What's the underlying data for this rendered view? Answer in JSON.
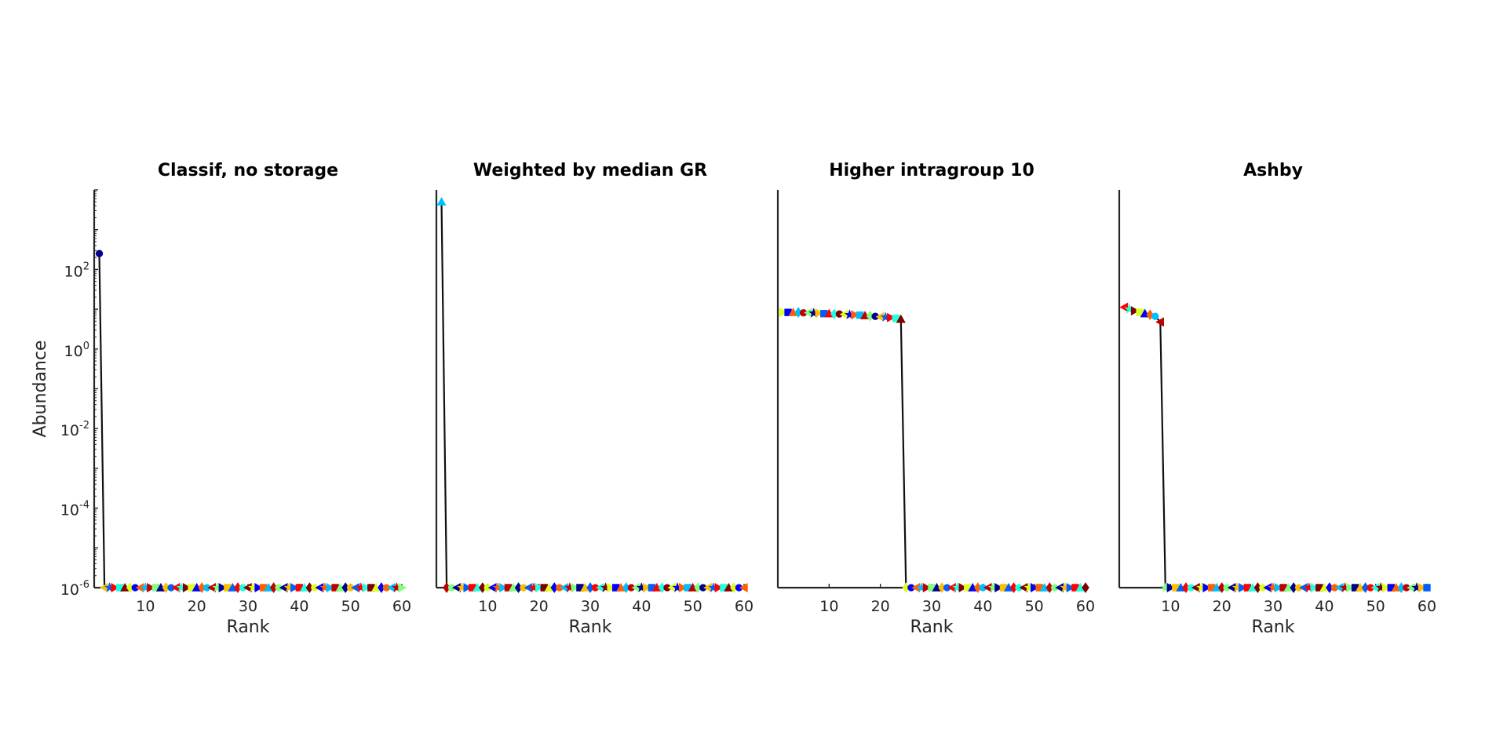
{
  "chart_data": [
    {
      "type": "line",
      "title": "Classif, no storage",
      "xlabel": "Rank",
      "ylabel": "Abundance",
      "ylog": true,
      "xlim": [
        0,
        60
      ],
      "ylim_exp": [
        -6,
        4
      ],
      "xticks": [
        10,
        20,
        30,
        40,
        50,
        60
      ],
      "yticks": [
        {
          "base": "10",
          "exp": "2"
        },
        {
          "base": "10",
          "exp": "0"
        },
        {
          "base": "10",
          "exp": "-2"
        },
        {
          "base": "10",
          "exp": "-4"
        },
        {
          "base": "10",
          "exp": "-6"
        }
      ],
      "series": [
        {
          "y_exp": [
            2.4,
            -6.0,
            -6.0,
            -6.0,
            -6.0,
            -6.0,
            -6.0,
            -6.0,
            -6.0,
            -6.0,
            -6.0,
            -6.0,
            -6.0,
            -6.0,
            -6.0,
            -6.0,
            -6.0,
            -6.0,
            -6.0,
            -6.0,
            -6.0,
            -6.0,
            -6.0,
            -6.0,
            -6.0,
            -6.0,
            -6.0,
            -6.0,
            -6.0,
            -6.0,
            -6.0,
            -6.0,
            -6.0,
            -6.0,
            -6.0,
            -6.0,
            -6.0,
            -6.0,
            -6.0,
            -6.0,
            -6.0,
            -6.0,
            -6.0,
            -6.0,
            -6.0,
            -6.0,
            -6.0,
            -6.0,
            -6.0,
            -6.0,
            -6.0,
            -6.0,
            -6.0,
            -6.0,
            -6.0,
            -6.0,
            -6.0,
            -6.0,
            -6.0,
            -6.0
          ]
        }
      ]
    },
    {
      "type": "line",
      "title": "Weighted by median GR",
      "xlabel": "Rank",
      "ylog": true,
      "xlim": [
        0,
        60
      ],
      "ylim_exp": [
        -6,
        4
      ],
      "xticks": [
        10,
        20,
        30,
        40,
        50,
        60
      ],
      "series": [
        {
          "y_exp": [
            3.7,
            -6.0,
            -6.0,
            -6.0,
            -6.0,
            -6.0,
            -6.0,
            -6.0,
            -6.0,
            -6.0,
            -6.0,
            -6.0,
            -6.0,
            -6.0,
            -6.0,
            -6.0,
            -6.0,
            -6.0,
            -6.0,
            -6.0,
            -6.0,
            -6.0,
            -6.0,
            -6.0,
            -6.0,
            -6.0,
            -6.0,
            -6.0,
            -6.0,
            -6.0,
            -6.0,
            -6.0,
            -6.0,
            -6.0,
            -6.0,
            -6.0,
            -6.0,
            -6.0,
            -6.0,
            -6.0,
            -6.0,
            -6.0,
            -6.0,
            -6.0,
            -6.0,
            -6.0,
            -6.0,
            -6.0,
            -6.0,
            -6.0,
            -6.0,
            -6.0,
            -6.0,
            -6.0,
            -6.0,
            -6.0,
            -6.0,
            -6.0,
            -6.0,
            -6.0
          ]
        }
      ]
    },
    {
      "type": "line",
      "title": "Higher intragroup 10",
      "xlabel": "Rank",
      "ylog": true,
      "xlim": [
        0,
        60
      ],
      "ylim_exp": [
        -6,
        4
      ],
      "xticks": [
        10,
        20,
        30,
        40,
        50,
        60
      ],
      "series": [
        {
          "y_exp": [
            0.92,
            0.92,
            0.92,
            0.92,
            0.91,
            0.91,
            0.9,
            0.9,
            0.89,
            0.89,
            0.88,
            0.88,
            0.87,
            0.86,
            0.86,
            0.85,
            0.84,
            0.83,
            0.82,
            0.81,
            0.8,
            0.79,
            0.77,
            0.75,
            -6.0,
            -6.0,
            -6.0,
            -6.0,
            -6.0,
            -6.0,
            -6.0,
            -6.0,
            -6.0,
            -6.0,
            -6.0,
            -6.0,
            -6.0,
            -6.0,
            -6.0,
            -6.0,
            -6.0,
            -6.0,
            -6.0,
            -6.0,
            -6.0,
            -6.0,
            -6.0,
            -6.0,
            -6.0,
            -6.0,
            -6.0,
            -6.0,
            -6.0,
            -6.0,
            -6.0,
            -6.0,
            -6.0,
            -6.0,
            -6.0,
            -6.0
          ]
        }
      ]
    },
    {
      "type": "line",
      "title": "Ashby",
      "xlabel": "Rank",
      "ylog": true,
      "xlim": [
        0,
        60
      ],
      "ylim_exp": [
        -6,
        4
      ],
      "xticks": [
        10,
        20,
        30,
        40,
        50,
        60
      ],
      "series": [
        {
          "y_exp": [
            1.05,
            1.0,
            0.96,
            0.92,
            0.89,
            0.86,
            0.82,
            0.68,
            -6.0,
            -6.0,
            -6.0,
            -6.0,
            -6.0,
            -6.0,
            -6.0,
            -6.0,
            -6.0,
            -6.0,
            -6.0,
            -6.0,
            -6.0,
            -6.0,
            -6.0,
            -6.0,
            -6.0,
            -6.0,
            -6.0,
            -6.0,
            -6.0,
            -6.0,
            -6.0,
            -6.0,
            -6.0,
            -6.0,
            -6.0,
            -6.0,
            -6.0,
            -6.0,
            -6.0,
            -6.0,
            -6.0,
            -6.0,
            -6.0,
            -6.0,
            -6.0,
            -6.0,
            -6.0,
            -6.0,
            -6.0,
            -6.0,
            -6.0,
            -6.0,
            -6.0,
            -6.0,
            -6.0,
            -6.0,
            -6.0,
            -6.0,
            -6.0,
            -6.0
          ]
        }
      ]
    }
  ],
  "marker_colors": [
    "#00008f",
    "#0000ff",
    "#0060ff",
    "#00bfff",
    "#20ffdf",
    "#80ff80",
    "#dfff20",
    "#ffbf00",
    "#ff6000",
    "#ff0000",
    "#bf0000",
    "#800000"
  ],
  "marker_shapes": [
    "circle",
    "triangle-up",
    "triangle-right",
    "triangle-left",
    "diamond",
    "square",
    "star"
  ]
}
